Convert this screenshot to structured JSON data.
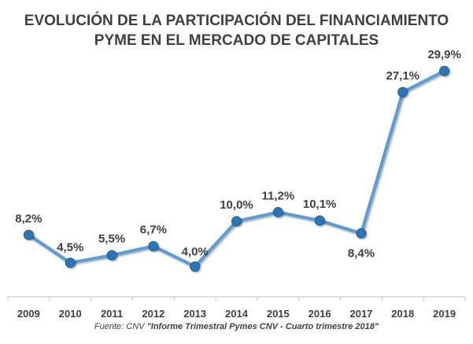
{
  "chart_data": {
    "type": "line",
    "title_line1": "EVOLUCIÓN DE LA PARTICIPACIÓN DEL FINANCIAMIENTO",
    "title_line2": "PYME EN EL MERCADO DE CAPITALES",
    "categories": [
      "2009",
      "2010",
      "2011",
      "2012",
      "2013",
      "2014",
      "2015",
      "2016",
      "2017",
      "2018",
      "2019"
    ],
    "values": [
      8.2,
      4.5,
      5.5,
      6.7,
      4.0,
      10.0,
      11.2,
      10.1,
      8.4,
      27.1,
      29.9
    ],
    "data_labels": [
      "8,2%",
      "4,5%",
      "5,5%",
      "6,7%",
      "4,0%",
      "10,0%",
      "11,2%",
      "10,1%",
      "8,4%",
      "27,1%",
      "29,9%"
    ],
    "ylim": [
      0,
      32
    ],
    "grid": false,
    "legend": "none",
    "line_color": "#5b9bd5",
    "marker_color": "#2e75b6"
  },
  "source": {
    "prefix": "Fuente: CNV ",
    "quoted": "\"Informe Trimestral Pymes CNV - Cuarto trimestre 2018\""
  }
}
